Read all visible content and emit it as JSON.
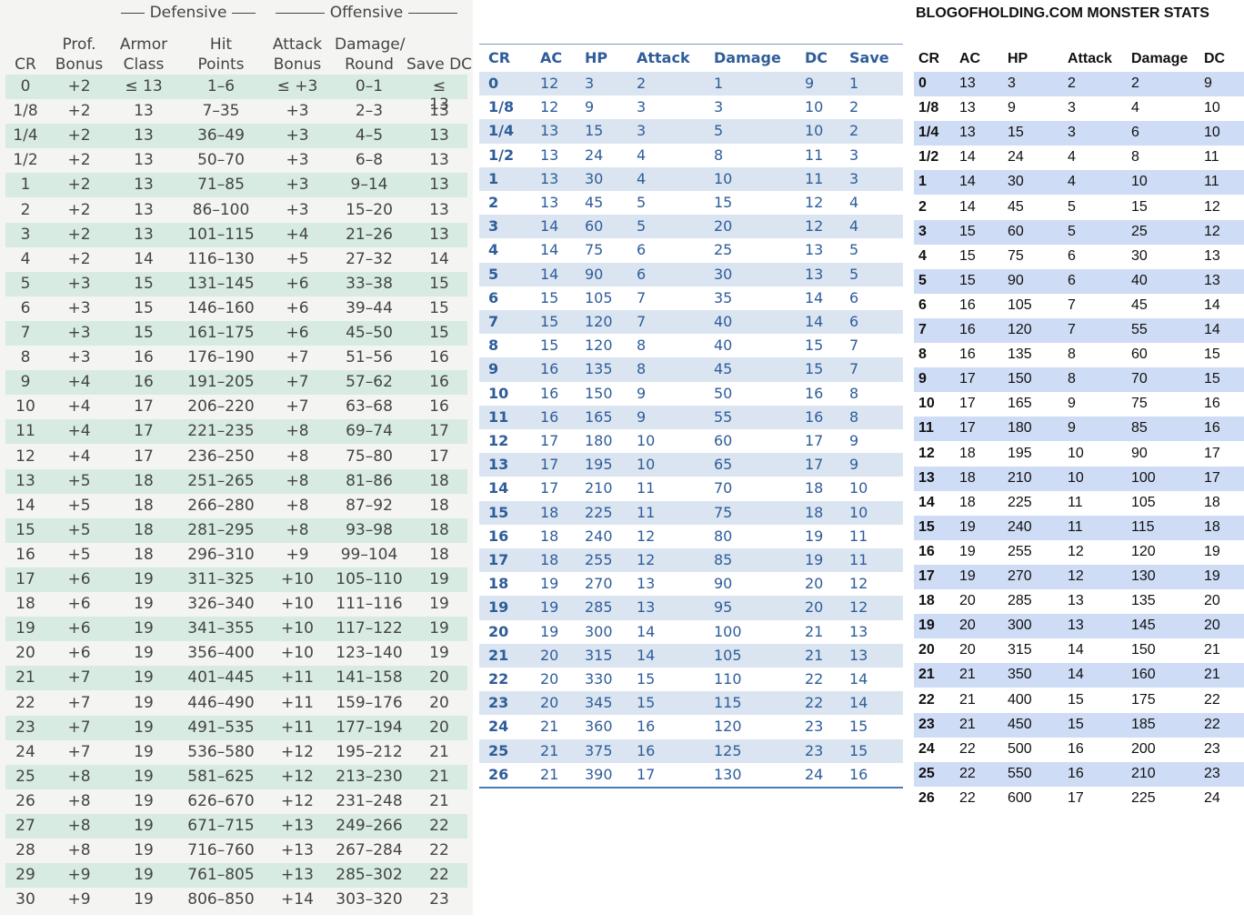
{
  "table1": {
    "groups": [
      "Defensive",
      "Offensive"
    ],
    "headers": [
      "CR",
      "Prof. Bonus",
      "Armor Class",
      "Hit Points",
      "Attack Bonus",
      "Damage/ Round",
      "Save DC"
    ],
    "rows": [
      [
        "0",
        "+2",
        "≤ 13",
        "1–6",
        "≤ +3",
        "0–1",
        "≤ 13"
      ],
      [
        "1/8",
        "+2",
        "13",
        "7–35",
        "+3",
        "2–3",
        "13"
      ],
      [
        "1/4",
        "+2",
        "13",
        "36–49",
        "+3",
        "4–5",
        "13"
      ],
      [
        "1/2",
        "+2",
        "13",
        "50–70",
        "+3",
        "6–8",
        "13"
      ],
      [
        "1",
        "+2",
        "13",
        "71–85",
        "+3",
        "9–14",
        "13"
      ],
      [
        "2",
        "+2",
        "13",
        "86–100",
        "+3",
        "15–20",
        "13"
      ],
      [
        "3",
        "+2",
        "13",
        "101–115",
        "+4",
        "21–26",
        "13"
      ],
      [
        "4",
        "+2",
        "14",
        "116–130",
        "+5",
        "27–32",
        "14"
      ],
      [
        "5",
        "+3",
        "15",
        "131–145",
        "+6",
        "33–38",
        "15"
      ],
      [
        "6",
        "+3",
        "15",
        "146–160",
        "+6",
        "39–44",
        "15"
      ],
      [
        "7",
        "+3",
        "15",
        "161–175",
        "+6",
        "45–50",
        "15"
      ],
      [
        "8",
        "+3",
        "16",
        "176–190",
        "+7",
        "51–56",
        "16"
      ],
      [
        "9",
        "+4",
        "16",
        "191–205",
        "+7",
        "57–62",
        "16"
      ],
      [
        "10",
        "+4",
        "17",
        "206–220",
        "+7",
        "63–68",
        "16"
      ],
      [
        "11",
        "+4",
        "17",
        "221–235",
        "+8",
        "69–74",
        "17"
      ],
      [
        "12",
        "+4",
        "17",
        "236–250",
        "+8",
        "75–80",
        "17"
      ],
      [
        "13",
        "+5",
        "18",
        "251–265",
        "+8",
        "81–86",
        "18"
      ],
      [
        "14",
        "+5",
        "18",
        "266–280",
        "+8",
        "87–92",
        "18"
      ],
      [
        "15",
        "+5",
        "18",
        "281–295",
        "+8",
        "93–98",
        "18"
      ],
      [
        "16",
        "+5",
        "18",
        "296–310",
        "+9",
        "99–104",
        "18"
      ],
      [
        "17",
        "+6",
        "19",
        "311–325",
        "+10",
        "105–110",
        "19"
      ],
      [
        "18",
        "+6",
        "19",
        "326–340",
        "+10",
        "111–116",
        "19"
      ],
      [
        "19",
        "+6",
        "19",
        "341–355",
        "+10",
        "117–122",
        "19"
      ],
      [
        "20",
        "+6",
        "19",
        "356–400",
        "+10",
        "123–140",
        "19"
      ],
      [
        "21",
        "+7",
        "19",
        "401–445",
        "+11",
        "141–158",
        "20"
      ],
      [
        "22",
        "+7",
        "19",
        "446–490",
        "+11",
        "159–176",
        "20"
      ],
      [
        "23",
        "+7",
        "19",
        "491–535",
        "+11",
        "177–194",
        "20"
      ],
      [
        "24",
        "+7",
        "19",
        "536–580",
        "+12",
        "195–212",
        "21"
      ],
      [
        "25",
        "+8",
        "19",
        "581–625",
        "+12",
        "213–230",
        "21"
      ],
      [
        "26",
        "+8",
        "19",
        "626–670",
        "+12",
        "231–248",
        "21"
      ],
      [
        "27",
        "+8",
        "19",
        "671–715",
        "+13",
        "249–266",
        "22"
      ],
      [
        "28",
        "+8",
        "19",
        "716–760",
        "+13",
        "267–284",
        "22"
      ],
      [
        "29",
        "+9",
        "19",
        "761–805",
        "+13",
        "285–302",
        "22"
      ],
      [
        "30",
        "+9",
        "19",
        "806–850",
        "+14",
        "303–320",
        "23"
      ]
    ]
  },
  "table2": {
    "headers": [
      "CR",
      "AC",
      "HP",
      "Attack",
      "Damage",
      "DC",
      "Save"
    ],
    "rows": [
      [
        "0",
        "12",
        "3",
        "2",
        "1",
        "9",
        "1"
      ],
      [
        "1/8",
        "12",
        "9",
        "3",
        "3",
        "10",
        "2"
      ],
      [
        "1/4",
        "13",
        "15",
        "3",
        "5",
        "10",
        "2"
      ],
      [
        "1/2",
        "13",
        "24",
        "4",
        "8",
        "11",
        "3"
      ],
      [
        "1",
        "13",
        "30",
        "4",
        "10",
        "11",
        "3"
      ],
      [
        "2",
        "13",
        "45",
        "5",
        "15",
        "12",
        "4"
      ],
      [
        "3",
        "14",
        "60",
        "5",
        "20",
        "12",
        "4"
      ],
      [
        "4",
        "14",
        "75",
        "6",
        "25",
        "13",
        "5"
      ],
      [
        "5",
        "14",
        "90",
        "6",
        "30",
        "13",
        "5"
      ],
      [
        "6",
        "15",
        "105",
        "7",
        "35",
        "14",
        "6"
      ],
      [
        "7",
        "15",
        "120",
        "7",
        "40",
        "14",
        "6"
      ],
      [
        "8",
        "15",
        "120",
        "8",
        "40",
        "15",
        "7"
      ],
      [
        "9",
        "16",
        "135",
        "8",
        "45",
        "15",
        "7"
      ],
      [
        "10",
        "16",
        "150",
        "9",
        "50",
        "16",
        "8"
      ],
      [
        "11",
        "16",
        "165",
        "9",
        "55",
        "16",
        "8"
      ],
      [
        "12",
        "17",
        "180",
        "10",
        "60",
        "17",
        "9"
      ],
      [
        "13",
        "17",
        "195",
        "10",
        "65",
        "17",
        "9"
      ],
      [
        "14",
        "17",
        "210",
        "11",
        "70",
        "18",
        "10"
      ],
      [
        "15",
        "18",
        "225",
        "11",
        "75",
        "18",
        "10"
      ],
      [
        "16",
        "18",
        "240",
        "12",
        "80",
        "19",
        "11"
      ],
      [
        "17",
        "18",
        "255",
        "12",
        "85",
        "19",
        "11"
      ],
      [
        "18",
        "19",
        "270",
        "13",
        "90",
        "20",
        "12"
      ],
      [
        "19",
        "19",
        "285",
        "13",
        "95",
        "20",
        "12"
      ],
      [
        "20",
        "19",
        "300",
        "14",
        "100",
        "21",
        "13"
      ],
      [
        "21",
        "20",
        "315",
        "14",
        "105",
        "21",
        "13"
      ],
      [
        "22",
        "20",
        "330",
        "15",
        "110",
        "22",
        "14"
      ],
      [
        "23",
        "20",
        "345",
        "15",
        "115",
        "22",
        "14"
      ],
      [
        "24",
        "21",
        "360",
        "16",
        "120",
        "23",
        "15"
      ],
      [
        "25",
        "21",
        "375",
        "16",
        "125",
        "23",
        "15"
      ],
      [
        "26",
        "21",
        "390",
        "17",
        "130",
        "24",
        "16"
      ]
    ]
  },
  "table3": {
    "title": "BLOGOFHOLDING.COM MONSTER STATS",
    "headers": [
      "CR",
      "AC",
      "HP",
      "Attack",
      "Damage",
      "DC"
    ],
    "rows": [
      [
        "0",
        "13",
        "3",
        "2",
        "2",
        "9"
      ],
      [
        "1/8",
        "13",
        "9",
        "3",
        "4",
        "10"
      ],
      [
        "1/4",
        "13",
        "15",
        "3",
        "6",
        "10"
      ],
      [
        "1/2",
        "14",
        "24",
        "4",
        "8",
        "11"
      ],
      [
        "1",
        "14",
        "30",
        "4",
        "10",
        "11"
      ],
      [
        "2",
        "14",
        "45",
        "5",
        "15",
        "12"
      ],
      [
        "3",
        "15",
        "60",
        "5",
        "25",
        "12"
      ],
      [
        "4",
        "15",
        "75",
        "6",
        "30",
        "13"
      ],
      [
        "5",
        "15",
        "90",
        "6",
        "40",
        "13"
      ],
      [
        "6",
        "16",
        "105",
        "7",
        "45",
        "14"
      ],
      [
        "7",
        "16",
        "120",
        "7",
        "55",
        "14"
      ],
      [
        "8",
        "16",
        "135",
        "8",
        "60",
        "15"
      ],
      [
        "9",
        "17",
        "150",
        "8",
        "70",
        "15"
      ],
      [
        "10",
        "17",
        "165",
        "9",
        "75",
        "16"
      ],
      [
        "11",
        "17",
        "180",
        "9",
        "85",
        "16"
      ],
      [
        "12",
        "18",
        "195",
        "10",
        "90",
        "17"
      ],
      [
        "13",
        "18",
        "210",
        "10",
        "100",
        "17"
      ],
      [
        "14",
        "18",
        "225",
        "11",
        "105",
        "18"
      ],
      [
        "15",
        "19",
        "240",
        "11",
        "115",
        "18"
      ],
      [
        "16",
        "19",
        "255",
        "12",
        "120",
        "19"
      ],
      [
        "17",
        "19",
        "270",
        "12",
        "130",
        "19"
      ],
      [
        "18",
        "20",
        "285",
        "13",
        "135",
        "20"
      ],
      [
        "19",
        "20",
        "300",
        "13",
        "145",
        "20"
      ],
      [
        "20",
        "20",
        "315",
        "14",
        "150",
        "21"
      ],
      [
        "21",
        "21",
        "350",
        "14",
        "160",
        "21"
      ],
      [
        "22",
        "21",
        "400",
        "15",
        "175",
        "22"
      ],
      [
        "23",
        "21",
        "450",
        "15",
        "185",
        "22"
      ],
      [
        "24",
        "22",
        "500",
        "16",
        "200",
        "23"
      ],
      [
        "25",
        "22",
        "550",
        "16",
        "210",
        "23"
      ],
      [
        "26",
        "22",
        "600",
        "17",
        "225",
        "24"
      ]
    ]
  }
}
